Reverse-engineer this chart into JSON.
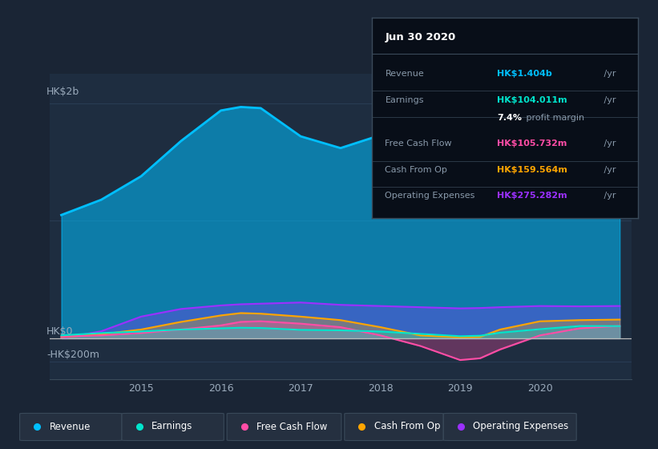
{
  "bg_color": "#1a2535",
  "plot_bg_color": "#1e2d40",
  "grid_color": "#2a3d55",
  "zero_line_color": "#bbbbbb",
  "years": [
    2014.0,
    2014.5,
    2015.0,
    2015.5,
    2016.0,
    2016.25,
    2016.5,
    2017.0,
    2017.5,
    2018.0,
    2018.5,
    2019.0,
    2019.25,
    2019.5,
    2020.0,
    2020.5,
    2021.0
  ],
  "revenue": [
    1050,
    1180,
    1380,
    1680,
    1940,
    1970,
    1960,
    1720,
    1620,
    1730,
    1790,
    1840,
    1860,
    1830,
    1760,
    1580,
    1404
  ],
  "earnings": [
    25,
    45,
    58,
    75,
    85,
    90,
    88,
    72,
    68,
    58,
    38,
    18,
    22,
    48,
    78,
    105,
    104
  ],
  "free_cash_flow": [
    15,
    25,
    45,
    75,
    110,
    140,
    145,
    125,
    95,
    25,
    -65,
    -185,
    -170,
    -95,
    25,
    85,
    105.7
  ],
  "cash_from_op": [
    10,
    35,
    75,
    140,
    195,
    215,
    210,
    185,
    155,
    95,
    25,
    8,
    12,
    75,
    145,
    155,
    159.6
  ],
  "operating_expenses": [
    0,
    60,
    185,
    250,
    280,
    290,
    295,
    305,
    285,
    275,
    265,
    255,
    258,
    265,
    275,
    272,
    275.3
  ],
  "revenue_color": "#00bfff",
  "earnings_color": "#00e5cc",
  "free_cash_flow_color": "#ff4da6",
  "cash_from_op_color": "#ffa500",
  "operating_expenses_color": "#9b30ff",
  "revenue_fill_alpha": 0.55,
  "other_fill_alpha": 0.3,
  "ylim_min": -350,
  "ylim_max": 2250,
  "ytick_values": [
    2000,
    1000,
    0,
    -200
  ],
  "ytick_labels": [
    "HK$2b",
    "",
    "HK$0",
    "-HK$200m"
  ],
  "xlabel_years": [
    2015,
    2016,
    2017,
    2018,
    2019,
    2020
  ],
  "tooltip_title": "Jun 30 2020",
  "tooltip_bg": "#080e18",
  "tooltip_border": "#3a4a5a",
  "tooltip_rows": [
    {
      "label": "Revenue",
      "value": "HK$1.404b",
      "suffix": " /yr",
      "color": "#00bfff",
      "is_margin": false
    },
    {
      "label": "Earnings",
      "value": "HK$104.011m",
      "suffix": " /yr",
      "color": "#00e5cc",
      "is_margin": false
    },
    {
      "label": "",
      "value": "7.4%",
      "suffix": " profit margin",
      "color": "white",
      "is_margin": true
    },
    {
      "label": "Free Cash Flow",
      "value": "HK$105.732m",
      "suffix": " /yr",
      "color": "#ff4da6",
      "is_margin": false
    },
    {
      "label": "Cash From Op",
      "value": "HK$159.564m",
      "suffix": " /yr",
      "color": "#ffa500",
      "is_margin": false
    },
    {
      "label": "Operating Expenses",
      "value": "HK$275.282m",
      "suffix": " /yr",
      "color": "#9b30ff",
      "is_margin": false
    }
  ],
  "legend_labels": [
    "Revenue",
    "Earnings",
    "Free Cash Flow",
    "Cash From Op",
    "Operating Expenses"
  ],
  "legend_colors": [
    "#00bfff",
    "#00e5cc",
    "#ff4da6",
    "#ffa500",
    "#9b30ff"
  ]
}
